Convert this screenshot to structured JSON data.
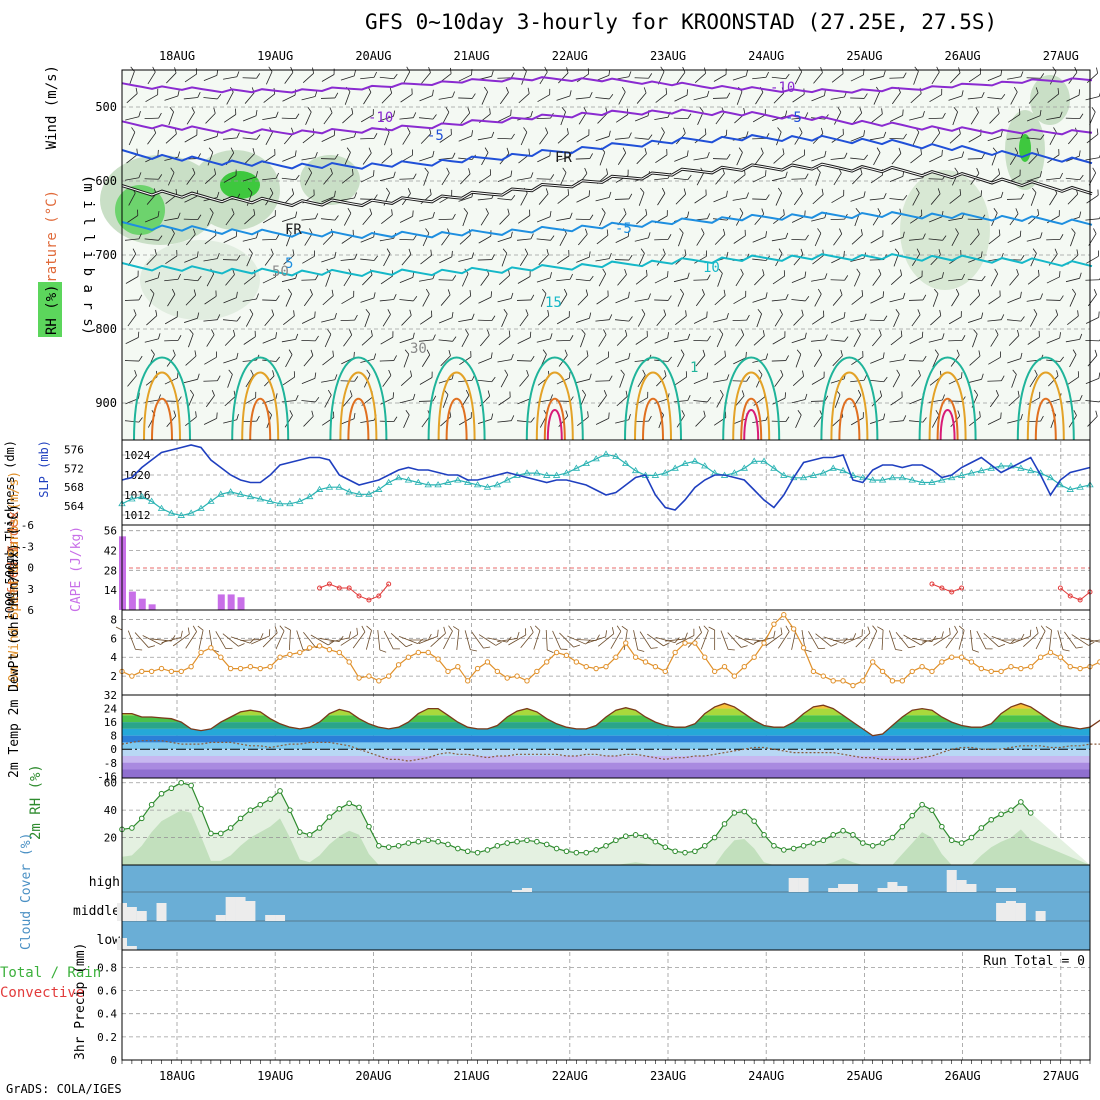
{
  "title": "GFS 0~10day 3-hourly for KROONSTAD (27.25E, 27.5S)",
  "credit": "GrADS: COLA/IGES",
  "colors": {
    "grid": "#9a9a9a",
    "axis": "#000000",
    "rh_green": "#4caf50",
    "slp_blue": "#1f3fbf",
    "thick_cyan": "#2ab3b3",
    "cape_purple": "#c86fe8",
    "li_red": "#e23b3b",
    "wind_orange": "#e0902a",
    "barb_brown": "#6b4b2a",
    "cloud_bg": "#6aaed6",
    "cloud_bar": "#ececec",
    "rh2m_green": "#2e8b2e"
  },
  "chart_data": [
    {
      "type": "contour",
      "name": "upper_air_cross_section",
      "x_dates": [
        "18AUG",
        "19AUG",
        "20AUG",
        "21AUG",
        "22AUG",
        "23AUG",
        "24AUG",
        "25AUG",
        "26AUG",
        "27AUG"
      ],
      "ylabel": "(m i l l i b a r s)",
      "y_ticks": [
        "500",
        "600",
        "700",
        "800",
        "900"
      ],
      "side_labels": {
        "wind": "Wind (m/s)",
        "temperature": "Temperature (°C)",
        "rh": "RH (%)"
      },
      "contour_labels": [
        "-10",
        "-10",
        "-5",
        "-5",
        "FR",
        "FR",
        "-5",
        "5",
        "10",
        "15",
        "1",
        "30",
        "50"
      ]
    },
    {
      "type": "line",
      "name": "thickness_slp",
      "left_label": "1000-500mb Thickness (dm)",
      "right_label": "SLP (mb)",
      "left_ticks": [
        "576",
        "572",
        "568",
        "564"
      ],
      "right_ticks": [
        "1024",
        "1020",
        "1016",
        "1012"
      ],
      "series": [
        {
          "name": "SLP",
          "values": [
            1019,
            1019.5,
            1021.5,
            1023,
            1024.5,
            1025,
            1025.5,
            1026,
            1025.5,
            1023,
            1021.5,
            1020,
            1019,
            1018.5,
            1018.5,
            1020,
            1022,
            1022.5,
            1023,
            1023.5,
            1023.5,
            1023,
            1020,
            1019,
            1018,
            1018.5,
            1019,
            1020,
            1021,
            1021.5,
            1021,
            1021,
            1020.5,
            1020,
            1020,
            1019,
            1019,
            1019.5,
            1020,
            1020.5,
            1020,
            1019.5,
            1019,
            1018.5,
            1019,
            1019,
            1018.5,
            1018,
            1017,
            1016,
            1016.5,
            1018,
            1019.5,
            1020,
            1016,
            1013.5,
            1013,
            1015,
            1017.5,
            1019,
            1020,
            1020,
            1019.5,
            1019,
            1017,
            1015,
            1013.5,
            1016,
            1019.5,
            1022.5,
            1023,
            1023.5,
            1023.5,
            1024,
            1019,
            1018.5,
            1021,
            1022,
            1022,
            1021.5,
            1022,
            1022,
            1021,
            1019.5,
            1020,
            1021.5,
            1022.5,
            1023.5,
            1022,
            1020.5,
            1021.5,
            1022.5,
            1023.5,
            1020,
            1016,
            1019,
            1020.5,
            1021,
            1021.5
          ]
        },
        {
          "name": "Thickness",
          "values": [
            564.5,
            565.5,
            566,
            565,
            563.5,
            562.5,
            562,
            562.5,
            563.5,
            565,
            566.5,
            567,
            566.5,
            566,
            565.5,
            565,
            564.5,
            564.5,
            565,
            566,
            567.5,
            568,
            568,
            567,
            566.5,
            566.5,
            567.5,
            569,
            570,
            569.5,
            569,
            568.5,
            568.5,
            569,
            569.5,
            569,
            568.5,
            568,
            568.5,
            569.5,
            570.5,
            571,
            571,
            570.5,
            570.5,
            571,
            572,
            573,
            574,
            575,
            574.5,
            573,
            571.5,
            570.5,
            570.5,
            571,
            572,
            573,
            573.5,
            572.5,
            571,
            570.5,
            571,
            572,
            573.5,
            573.5,
            572,
            570.5,
            570,
            570,
            570.5,
            571,
            572,
            571.5,
            570.5,
            570,
            569.5,
            569.5,
            570,
            570,
            569.5,
            569,
            569,
            569.5,
            570,
            570.5,
            571,
            571.5,
            572,
            572.5,
            572.5,
            572,
            571.5,
            571,
            570,
            568.5,
            567.5,
            568,
            568.5
          ]
        }
      ]
    },
    {
      "type": "bar",
      "name": "cape_li",
      "left_label": "Lifted Index",
      "right_label": "CAPE (J/kg)",
      "left_ticks": [
        "-6",
        "-3",
        "0",
        "3",
        "6"
      ],
      "right_ticks": [
        "56",
        "42",
        "28",
        "14"
      ],
      "series": [
        {
          "name": "CAPE",
          "points": [
            [
              0,
              52
            ],
            [
              1,
              13
            ],
            [
              2,
              8
            ],
            [
              3,
              4
            ],
            [
              10,
              11
            ],
            [
              11,
              11
            ],
            [
              12,
              9
            ]
          ]
        },
        {
          "name": "LI",
          "points": [
            [
              20,
              4
            ],
            [
              21,
              5
            ],
            [
              22,
              4
            ],
            [
              23,
              4
            ],
            [
              24,
              2
            ],
            [
              25,
              1
            ],
            [
              26,
              2
            ],
            [
              27,
              5
            ],
            [
              82,
              5
            ],
            [
              83,
              4
            ],
            [
              84,
              3
            ],
            [
              85,
              4
            ],
            [
              95,
              4
            ],
            [
              96,
              2
            ],
            [
              97,
              1
            ],
            [
              98,
              3
            ]
          ]
        }
      ]
    },
    {
      "type": "line",
      "name": "wind10m",
      "ylabel": "10m Wind Speed & Barbs (m/s)",
      "y_ticks": [
        "8",
        "6",
        "4",
        "2"
      ],
      "series": [
        {
          "name": "Speed",
          "values": [
            2.5,
            2,
            2.5,
            2.5,
            2.8,
            2.5,
            2.5,
            3,
            4.5,
            5,
            4,
            2.8,
            2.8,
            3,
            2.8,
            3,
            4,
            4.3,
            4.5,
            5,
            5.2,
            4.8,
            4.5,
            3.5,
            1.8,
            2,
            1.5,
            2,
            3.2,
            4,
            4.5,
            4.5,
            3.8,
            2.5,
            3,
            1.5,
            2.8,
            3.5,
            2.5,
            1.8,
            2,
            1.5,
            2.5,
            3.5,
            4.5,
            4.2,
            3.5,
            3,
            2.8,
            3,
            4,
            5.5,
            4,
            3.5,
            3,
            2.5,
            4.5,
            5.5,
            5.5,
            4,
            2.5,
            3,
            2,
            3,
            4,
            5.5,
            7.5,
            8.5,
            7,
            5,
            2.5,
            2,
            1.5,
            1.5,
            1,
            1.5,
            3.5,
            2.5,
            1.5,
            1.5,
            2.5,
            3,
            2.5,
            3.5,
            4,
            4,
            3.5,
            2.8,
            2.5,
            2.5,
            3,
            2.8,
            3,
            4,
            4.5,
            4,
            3,
            2.8,
            3,
            3.5,
            4
          ]
        }
      ]
    },
    {
      "type": "area",
      "name": "temp2m",
      "ylabel": "2m Temp 2m DewPt (6hr Min/Max) (°C)",
      "y_ticks": [
        "32",
        "24",
        "16",
        "8",
        "0",
        "-8",
        "-16"
      ],
      "series": [
        {
          "name": "Temp",
          "values": [
            21,
            21,
            19,
            19,
            18.5,
            18,
            16,
            12,
            11,
            12,
            16,
            19,
            22,
            23,
            22,
            18,
            15,
            13,
            12,
            13,
            16,
            21,
            23.5,
            22,
            18,
            15,
            13,
            12,
            13,
            16,
            21,
            24,
            24,
            20,
            16,
            13,
            12,
            12,
            14,
            19,
            22.5,
            24,
            22,
            18,
            15,
            13,
            12,
            12,
            14,
            19,
            23,
            24.5,
            23,
            19,
            16,
            14,
            13,
            13,
            15,
            21,
            25,
            27,
            25,
            21,
            17,
            14,
            13,
            13,
            16,
            21,
            25,
            26,
            24,
            20,
            16,
            12,
            8,
            9,
            14,
            19,
            23,
            24,
            23,
            19,
            16,
            14,
            13,
            13,
            15,
            21,
            25,
            27,
            25,
            21,
            17,
            14,
            13,
            12,
            13,
            17,
            21,
            24,
            22
          ]
        },
        {
          "name": "DewPt",
          "values": [
            3,
            4,
            5,
            5,
            5,
            4,
            3,
            3,
            3,
            4,
            4,
            4,
            3,
            2,
            2,
            1,
            2,
            3,
            3,
            4,
            4,
            4,
            3,
            2,
            0,
            -2,
            -4,
            -6,
            -6,
            -7,
            -6,
            -5,
            -3,
            -2,
            -3,
            -3,
            -4,
            -5,
            -4,
            -4,
            -3,
            -3,
            -3,
            -3,
            -3,
            -4,
            -4,
            -3,
            -3,
            -4,
            -4,
            -3,
            -3,
            -4,
            -5,
            -6,
            -5,
            -5,
            -4,
            -4,
            -3,
            -2,
            -1,
            0,
            1,
            1,
            0,
            -1,
            -2,
            -2,
            -2,
            -2,
            -2,
            -3,
            -4,
            -5,
            -5,
            -6,
            -6,
            -6,
            -6,
            -5,
            -4,
            -2,
            0,
            1,
            1,
            0,
            0,
            0,
            1,
            2,
            2,
            2,
            1,
            1,
            2,
            2,
            3,
            3
          ]
        }
      ]
    },
    {
      "type": "area",
      "name": "rh2m",
      "ylabel": "2m RH (%)",
      "y_ticks": [
        "60",
        "40",
        "20"
      ],
      "series": [
        {
          "name": "RH",
          "values": [
            26,
            27,
            34,
            44,
            52,
            56,
            60,
            58,
            41,
            23,
            23,
            27,
            34,
            40,
            44,
            48,
            54,
            40,
            24,
            22,
            27,
            35,
            41,
            45,
            42,
            28,
            14,
            13,
            14,
            16,
            17,
            18,
            17,
            15,
            12,
            10,
            9,
            11,
            14,
            16,
            17,
            18,
            17,
            15,
            12,
            10,
            9,
            9,
            11,
            14,
            18,
            21,
            22,
            21,
            17,
            13,
            10,
            9,
            10,
            14,
            20,
            30,
            38,
            39,
            32,
            22,
            14,
            11,
            12,
            14,
            16,
            18,
            22,
            25,
            22,
            16,
            14,
            16,
            20,
            28,
            36,
            44,
            40,
            28,
            18,
            16,
            20,
            27,
            33,
            37,
            40,
            46,
            38
          ]
        }
      ]
    },
    {
      "type": "bar",
      "name": "cloud_cover",
      "ylabel": "Cloud Cover (%)",
      "levels": [
        "high",
        "middle",
        "low"
      ],
      "series": [
        {
          "name": "high",
          "points": [
            [
              40,
              2
            ],
            [
              41,
              4
            ],
            [
              68,
              14
            ],
            [
              69,
              14
            ],
            [
              72,
              4
            ],
            [
              73,
              8
            ],
            [
              74,
              8
            ],
            [
              77,
              4
            ],
            [
              78,
              10
            ],
            [
              79,
              6
            ],
            [
              84,
              22
            ],
            [
              85,
              12
            ],
            [
              86,
              8
            ],
            [
              89,
              4
            ],
            [
              90,
              4
            ]
          ]
        },
        {
          "name": "middle",
          "points": [
            [
              0,
              18
            ],
            [
              1,
              14
            ],
            [
              2,
              10
            ],
            [
              4,
              18
            ],
            [
              10,
              6
            ],
            [
              11,
              24
            ],
            [
              12,
              24
            ],
            [
              13,
              20
            ],
            [
              15,
              6
            ],
            [
              16,
              6
            ],
            [
              89,
              18
            ],
            [
              90,
              20
            ],
            [
              91,
              18
            ],
            [
              93,
              10
            ]
          ]
        },
        {
          "name": "low",
          "points": [
            [
              0,
              12
            ],
            [
              1,
              4
            ]
          ]
        }
      ]
    },
    {
      "type": "bar",
      "name": "precip",
      "left_label": "Total / Rain",
      "left_label2": "Convective",
      "ylabel": "3hr Precip (mm)",
      "y_ticks": [
        "0.8",
        "0.6",
        "0.4",
        "0.2",
        "0"
      ],
      "run_total": "Run Total = 0",
      "values": []
    }
  ]
}
